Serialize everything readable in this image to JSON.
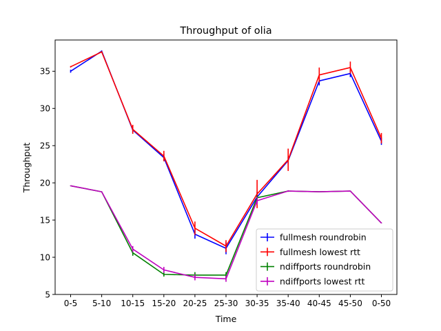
{
  "chart_data": {
    "type": "line",
    "title": "Throughput of olia",
    "xlabel": "Time",
    "ylabel": "Throughput",
    "categories": [
      "0-5",
      "5-10",
      "10-15",
      "15-20",
      "20-25",
      "25-30",
      "30-35",
      "35-40",
      "40-45",
      "45-50",
      "0-50"
    ],
    "ylim": [
      5,
      39.2
    ],
    "yticks": [
      5,
      10,
      15,
      20,
      25,
      30,
      35
    ],
    "grid": false,
    "legend_position": "lower-right",
    "series": [
      {
        "name": "fullmesh roundrobin",
        "color": "#0000ff",
        "values": [
          35.0,
          37.7,
          27.1,
          23.4,
          13.1,
          11.2,
          18.1,
          23.0,
          33.7,
          34.7,
          25.6
        ],
        "errors": [
          0.2,
          0.1,
          0.5,
          0.5,
          0.6,
          0.8,
          0.7,
          0.5,
          0.6,
          0.5,
          0.5
        ]
      },
      {
        "name": "fullmesh lowest rtt",
        "color": "#ff0000",
        "values": [
          35.6,
          37.6,
          27.2,
          23.6,
          13.9,
          11.5,
          18.5,
          23.1,
          34.5,
          35.5,
          26.0
        ],
        "errors": [
          0.1,
          0.1,
          0.6,
          0.7,
          0.9,
          0.8,
          1.9,
          1.5,
          1.0,
          0.8,
          0.7
        ]
      },
      {
        "name": "ndiffports roundrobin",
        "color": "#008000",
        "values": [
          19.6,
          18.8,
          10.6,
          7.7,
          7.6,
          7.6,
          18.0,
          18.9,
          18.8,
          18.9,
          14.6
        ],
        "errors": [
          0.05,
          0.05,
          0.4,
          0.3,
          0.4,
          0.4,
          0.3,
          0.1,
          0.05,
          0.05,
          0.05
        ]
      },
      {
        "name": "ndiffports lowest rtt",
        "color": "#bf00bf",
        "values": [
          19.6,
          18.8,
          11.1,
          8.3,
          7.3,
          7.1,
          17.6,
          18.9,
          18.8,
          18.9,
          14.6
        ],
        "errors": [
          0.05,
          0.05,
          0.4,
          0.4,
          0.4,
          0.4,
          0.5,
          0.1,
          0.05,
          0.05,
          0.05
        ]
      }
    ]
  }
}
